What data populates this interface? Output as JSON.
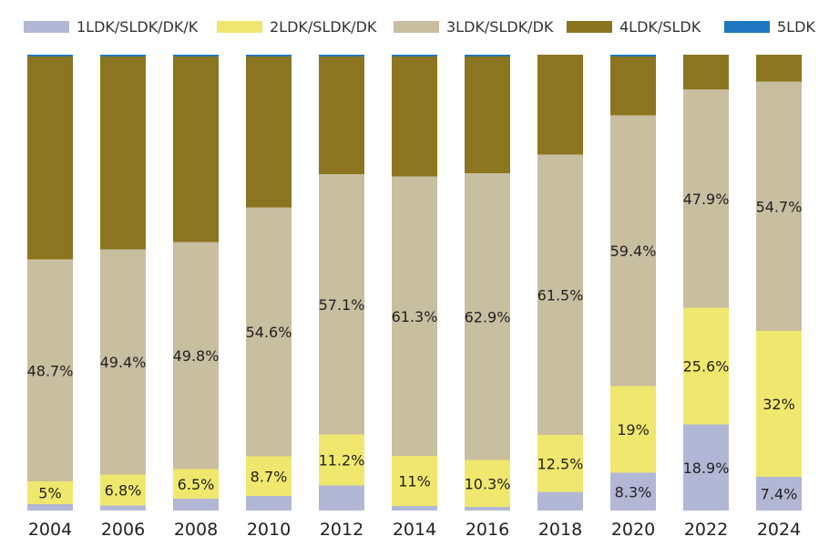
{
  "chart_data": {
    "type": "bar",
    "stacked": true,
    "normalized_percent": true,
    "categories": [
      "2004",
      "2006",
      "2008",
      "2010",
      "2012",
      "2014",
      "2016",
      "2018",
      "2020",
      "2022",
      "2024"
    ],
    "series": [
      {
        "name": "1LDK/SLDK/DK/K",
        "color": "#b3b7d6",
        "values": [
          1.4,
          1.1,
          2.6,
          3.2,
          5.5,
          1.0,
          0.8,
          4.1,
          8.3,
          18.9,
          7.4
        ],
        "labels": [
          "",
          "",
          "",
          "",
          "",
          "",
          "",
          "",
          "8.3%",
          "18.9%",
          "7.4%"
        ]
      },
      {
        "name": "2LDK/SLDK/DK",
        "color": "#f0e86e",
        "values": [
          5.0,
          6.8,
          6.5,
          8.7,
          11.2,
          11.0,
          10.3,
          12.5,
          19.0,
          25.6,
          32.0
        ],
        "labels": [
          "5%",
          "6.8%",
          "6.5%",
          "8.7%",
          "11.2%",
          "11%",
          "10.3%",
          "12.5%",
          "19%",
          "25.6%",
          "32%"
        ]
      },
      {
        "name": "3LDK/SLDK/DK",
        "color": "#c8bea0",
        "values": [
          48.7,
          49.4,
          49.8,
          54.6,
          57.1,
          61.3,
          62.9,
          61.5,
          59.4,
          47.9,
          54.7
        ],
        "labels": [
          "48.7%",
          "49.4%",
          "49.8%",
          "54.6%",
          "57.1%",
          "61.3%",
          "62.9%",
          "61.5%",
          "59.4%",
          "47.9%",
          "54.7%"
        ]
      },
      {
        "name": "4LDK/SLDK",
        "color": "#8b7520",
        "values": [
          44.5,
          42.3,
          40.7,
          33.1,
          25.8,
          26.3,
          25.6,
          21.9,
          12.9,
          7.6,
          5.9
        ],
        "labels": [
          "",
          "",
          "",
          "",
          "",
          "",
          "",
          "",
          "",
          "",
          ""
        ]
      },
      {
        "name": "5LDK",
        "color": "#1f77c0",
        "values": [
          0.4,
          0.4,
          0.4,
          0.4,
          0.4,
          0.4,
          0.4,
          0.0,
          0.4,
          0.0,
          0.0
        ],
        "labels": [
          "",
          "",
          "",
          "",
          "",
          "",
          "",
          "",
          "",
          "",
          ""
        ]
      }
    ],
    "ylim": [
      0,
      100
    ],
    "title": "",
    "xlabel": "",
    "ylabel": "",
    "legend_position": "top",
    "grid": false
  }
}
